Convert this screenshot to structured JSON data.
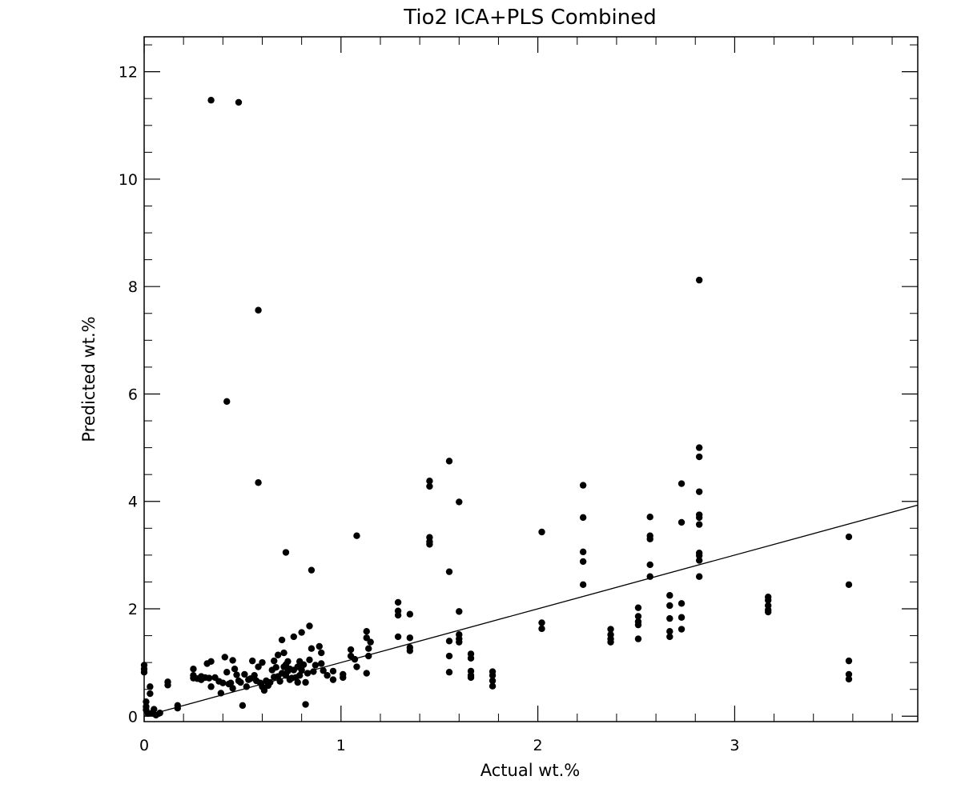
{
  "chart_data": {
    "type": "scatter",
    "title": "Tio2 ICA+PLS Combined",
    "xlabel": "Actual wt.%",
    "ylabel": "Predicted wt.%",
    "xlim": [
      0,
      3.93
    ],
    "ylim": [
      -0.1,
      12.65
    ],
    "xticks": [
      0,
      1,
      2,
      3
    ],
    "xtick_labels": [
      "0",
      "1",
      "2",
      "3"
    ],
    "yticks": [
      0,
      2,
      4,
      6,
      8,
      10,
      12
    ],
    "ytick_labels": [
      "0",
      "2",
      "4",
      "6",
      "8",
      "10",
      "12"
    ],
    "grid": false,
    "legend": "none",
    "reference_line": {
      "label": "",
      "x": [
        0,
        3.93
      ],
      "y": [
        0,
        3.93
      ]
    },
    "series": [
      {
        "points": [
          [
            0.34,
            11.47
          ],
          [
            0.48,
            11.43
          ],
          [
            0.58,
            7.56
          ],
          [
            0.42,
            5.86
          ],
          [
            0.58,
            4.35
          ],
          [
            0.72,
            3.05
          ],
          [
            0.85,
            2.72
          ],
          [
            1.08,
            3.36
          ],
          [
            2.82,
            8.12
          ],
          [
            0.0,
            0.95
          ],
          [
            0.0,
            0.88
          ],
          [
            0.0,
            0.82
          ],
          [
            0.01,
            0.27
          ],
          [
            0.01,
            0.18
          ],
          [
            0.01,
            0.12
          ],
          [
            0.02,
            0.05
          ],
          [
            0.03,
            0.55
          ],
          [
            0.03,
            0.42
          ],
          [
            0.04,
            0.06
          ],
          [
            0.05,
            0.13
          ],
          [
            0.06,
            0.02
          ],
          [
            0.08,
            0.06
          ],
          [
            0.12,
            0.64
          ],
          [
            0.12,
            0.58
          ],
          [
            0.17,
            0.2
          ],
          [
            0.17,
            0.15
          ],
          [
            0.25,
            0.88
          ],
          [
            0.25,
            0.76
          ],
          [
            0.25,
            0.71
          ],
          [
            0.27,
            0.7
          ],
          [
            0.29,
            0.74
          ],
          [
            0.29,
            0.68
          ],
          [
            0.31,
            0.72
          ],
          [
            0.32,
            0.98
          ],
          [
            0.33,
            0.71
          ],
          [
            0.34,
            1.02
          ],
          [
            0.34,
            0.55
          ],
          [
            0.36,
            0.72
          ],
          [
            0.38,
            0.65
          ],
          [
            0.39,
            0.43
          ],
          [
            0.4,
            0.62
          ],
          [
            0.41,
            1.1
          ],
          [
            0.42,
            0.82
          ],
          [
            0.43,
            0.6
          ],
          [
            0.44,
            0.62
          ],
          [
            0.45,
            0.52
          ],
          [
            0.45,
            1.04
          ],
          [
            0.46,
            0.88
          ],
          [
            0.47,
            0.77
          ],
          [
            0.48,
            0.66
          ],
          [
            0.49,
            0.63
          ],
          [
            0.5,
            0.2
          ],
          [
            0.51,
            0.78
          ],
          [
            0.52,
            0.55
          ],
          [
            0.53,
            0.68
          ],
          [
            0.54,
            0.7
          ],
          [
            0.55,
            1.03
          ],
          [
            0.56,
            0.76
          ],
          [
            0.57,
            0.66
          ],
          [
            0.58,
            0.92
          ],
          [
            0.59,
            0.62
          ],
          [
            0.6,
            1.0
          ],
          [
            0.6,
            0.55
          ],
          [
            0.61,
            0.48
          ],
          [
            0.62,
            0.66
          ],
          [
            0.63,
            0.57
          ],
          [
            0.64,
            0.63
          ],
          [
            0.65,
            0.86
          ],
          [
            0.66,
            0.73
          ],
          [
            0.66,
            1.03
          ],
          [
            0.67,
            0.91
          ],
          [
            0.68,
            1.14
          ],
          [
            0.68,
            0.74
          ],
          [
            0.69,
            0.65
          ],
          [
            0.7,
            0.8
          ],
          [
            0.7,
            1.42
          ],
          [
            0.71,
            1.18
          ],
          [
            0.71,
            0.92
          ],
          [
            0.72,
            0.96
          ],
          [
            0.72,
            0.76
          ],
          [
            0.73,
            0.84
          ],
          [
            0.73,
            1.02
          ],
          [
            0.74,
            0.68
          ],
          [
            0.74,
            0.88
          ],
          [
            0.75,
            0.71
          ],
          [
            0.76,
            1.48
          ],
          [
            0.76,
            0.86
          ],
          [
            0.77,
            0.72
          ],
          [
            0.78,
            0.92
          ],
          [
            0.78,
            0.63
          ],
          [
            0.79,
            1.02
          ],
          [
            0.79,
            0.76
          ],
          [
            0.8,
            1.56
          ],
          [
            0.8,
            0.86
          ],
          [
            0.81,
            0.96
          ],
          [
            0.82,
            0.63
          ],
          [
            0.82,
            0.22
          ],
          [
            0.83,
            0.8
          ],
          [
            0.84,
            1.05
          ],
          [
            0.84,
            1.68
          ],
          [
            0.85,
            1.26
          ],
          [
            0.86,
            0.83
          ],
          [
            0.87,
            0.95
          ],
          [
            0.89,
            1.3
          ],
          [
            0.9,
            1.18
          ],
          [
            0.9,
            0.98
          ],
          [
            0.91,
            0.85
          ],
          [
            0.93,
            0.76
          ],
          [
            0.96,
            0.84
          ],
          [
            0.96,
            0.68
          ],
          [
            1.01,
            0.78
          ],
          [
            1.01,
            0.72
          ],
          [
            1.05,
            1.24
          ],
          [
            1.05,
            1.12
          ],
          [
            1.07,
            1.06
          ],
          [
            1.08,
            0.92
          ],
          [
            1.13,
            1.58
          ],
          [
            1.13,
            1.46
          ],
          [
            1.14,
            1.26
          ],
          [
            1.14,
            1.12
          ],
          [
            1.13,
            0.8
          ],
          [
            1.15,
            1.38
          ],
          [
            1.29,
            2.12
          ],
          [
            1.29,
            1.96
          ],
          [
            1.29,
            1.88
          ],
          [
            1.29,
            1.48
          ],
          [
            1.35,
            1.9
          ],
          [
            1.35,
            1.46
          ],
          [
            1.35,
            1.28
          ],
          [
            1.35,
            1.22
          ],
          [
            1.45,
            4.38
          ],
          [
            1.45,
            4.28
          ],
          [
            1.45,
            3.33
          ],
          [
            1.45,
            3.25
          ],
          [
            1.45,
            3.2
          ],
          [
            1.55,
            4.75
          ],
          [
            1.55,
            2.69
          ],
          [
            1.55,
            1.4
          ],
          [
            1.55,
            1.12
          ],
          [
            1.55,
            0.82
          ],
          [
            1.6,
            3.99
          ],
          [
            1.6,
            1.95
          ],
          [
            1.6,
            1.52
          ],
          [
            1.6,
            1.44
          ],
          [
            1.6,
            1.38
          ],
          [
            1.66,
            1.16
          ],
          [
            1.66,
            1.08
          ],
          [
            1.66,
            0.84
          ],
          [
            1.66,
            0.76
          ],
          [
            1.66,
            0.72
          ],
          [
            1.77,
            0.83
          ],
          [
            1.77,
            0.76
          ],
          [
            1.77,
            0.66
          ],
          [
            1.77,
            0.56
          ],
          [
            2.02,
            3.43
          ],
          [
            2.02,
            1.74
          ],
          [
            2.02,
            1.63
          ],
          [
            2.23,
            4.3
          ],
          [
            2.23,
            3.7
          ],
          [
            2.23,
            3.06
          ],
          [
            2.23,
            2.88
          ],
          [
            2.23,
            2.45
          ],
          [
            2.37,
            1.62
          ],
          [
            2.37,
            1.52
          ],
          [
            2.37,
            1.44
          ],
          [
            2.37,
            1.38
          ],
          [
            2.51,
            2.02
          ],
          [
            2.51,
            1.86
          ],
          [
            2.51,
            1.76
          ],
          [
            2.51,
            1.7
          ],
          [
            2.51,
            1.44
          ],
          [
            2.57,
            3.71
          ],
          [
            2.57,
            3.36
          ],
          [
            2.57,
            3.3
          ],
          [
            2.57,
            2.82
          ],
          [
            2.57,
            2.6
          ],
          [
            2.67,
            2.25
          ],
          [
            2.67,
            2.06
          ],
          [
            2.67,
            1.82
          ],
          [
            2.67,
            1.58
          ],
          [
            2.67,
            1.48
          ],
          [
            2.73,
            4.33
          ],
          [
            2.73,
            3.61
          ],
          [
            2.73,
            2.1
          ],
          [
            2.73,
            1.84
          ],
          [
            2.73,
            1.62
          ],
          [
            2.82,
            5.0
          ],
          [
            2.82,
            4.83
          ],
          [
            2.82,
            4.18
          ],
          [
            2.82,
            3.75
          ],
          [
            2.82,
            3.7
          ],
          [
            2.82,
            3.57
          ],
          [
            2.82,
            3.04
          ],
          [
            2.82,
            2.99
          ],
          [
            2.82,
            2.9
          ],
          [
            2.82,
            2.6
          ],
          [
            3.17,
            2.22
          ],
          [
            3.17,
            2.16
          ],
          [
            3.17,
            2.06
          ],
          [
            3.17,
            1.98
          ],
          [
            3.17,
            1.94
          ],
          [
            3.58,
            3.34
          ],
          [
            3.58,
            2.45
          ],
          [
            3.58,
            1.03
          ],
          [
            3.58,
            0.78
          ],
          [
            3.58,
            0.69
          ]
        ]
      }
    ]
  }
}
